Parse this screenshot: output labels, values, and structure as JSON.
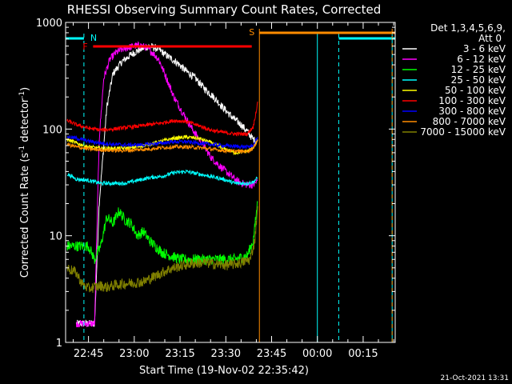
{
  "chart_data": {
    "type": "line",
    "title": "RHESSI Observing Summary Count Rates, Corrected",
    "xlabel": "Start Time (19-Nov-02 22:35:42)",
    "ylabel": "Corrected Count Rate (s⁻¹ detector⁻¹)",
    "ylabel_main": "Corrected Count Rate (s",
    "ylabel_sup1": "-1",
    "ylabel_mid": " detector",
    "ylabel_sup2": "-1",
    "ylabel_end": ")",
    "yscale": "log",
    "ylim": [
      1,
      1000
    ],
    "xlim_minutes": [
      -7.5,
      100.5
    ],
    "x_ticks": [
      {
        "t": 0,
        "label": "22:45"
      },
      {
        "t": 15,
        "label": "23:00"
      },
      {
        "t": 30,
        "label": "23:15"
      },
      {
        "t": 45,
        "label": "23:30"
      },
      {
        "t": 60,
        "label": "23:45"
      },
      {
        "t": 75,
        "label": "00:00"
      },
      {
        "t": 90,
        "label": "00:15"
      }
    ],
    "y_ticks": [
      {
        "v": 1,
        "label": "1"
      },
      {
        "v": 10,
        "label": "10"
      },
      {
        "v": 100,
        "label": "100"
      },
      {
        "v": 1000,
        "label": "1000"
      }
    ],
    "legend_header": [
      "Det 1,3,4,5,6,9,",
      "Att 0"
    ],
    "series": [
      {
        "name": "3 - 6 keV",
        "color": "#ffffff",
        "x": [
          -4,
          2,
          3.5,
          6,
          8,
          11,
          14,
          17,
          20,
          23,
          26,
          29,
          32,
          35,
          38,
          41,
          44,
          47,
          50,
          52,
          54,
          55.5
        ],
        "values": [
          1.5,
          1.5,
          20,
          160,
          330,
          430,
          500,
          560,
          600,
          560,
          480,
          420,
          350,
          300,
          240,
          200,
          160,
          130,
          110,
          95,
          80,
          75
        ]
      },
      {
        "name": "6 - 12 keV",
        "color": "#ff00ff",
        "x": [
          -4,
          2,
          3.5,
          5,
          7,
          9,
          11,
          13,
          15,
          17,
          19,
          21,
          23,
          25,
          28,
          31,
          34,
          37,
          40,
          43,
          46,
          49,
          52,
          54,
          55.5
        ],
        "values": [
          1.5,
          1.5,
          80,
          300,
          450,
          520,
          560,
          580,
          600,
          610,
          580,
          520,
          450,
          330,
          200,
          140,
          100,
          75,
          55,
          45,
          38,
          32,
          30,
          30,
          33
        ]
      },
      {
        "name": "12 - 25 keV",
        "color": "#00ff00",
        "x": [
          -7,
          0,
          2,
          4,
          6,
          8,
          10,
          12,
          14,
          16,
          18,
          20,
          24,
          30,
          36,
          42,
          48,
          52,
          54,
          55.5
        ],
        "values": [
          8,
          8,
          6,
          8,
          15,
          13,
          17,
          14,
          13,
          10,
          11,
          9,
          7,
          6,
          6,
          6,
          6,
          6.5,
          9,
          22
        ]
      },
      {
        "name": "25 - 50 keV",
        "color": "#00ffff",
        "x": [
          -7,
          -4,
          0,
          4,
          8,
          12,
          16,
          20,
          24,
          28,
          32,
          36,
          40,
          44,
          48,
          52,
          54,
          55.5
        ],
        "values": [
          38,
          34,
          33,
          31,
          31,
          31,
          33,
          35,
          36,
          39,
          40,
          38,
          36,
          34,
          31,
          31,
          32,
          35
        ]
      },
      {
        "name": "50 - 100 keV",
        "color": "#ffff00",
        "x": [
          -7,
          -4,
          0,
          4,
          8,
          12,
          16,
          20,
          24,
          28,
          32,
          36,
          40,
          44,
          48,
          52,
          54,
          55.5
        ],
        "values": [
          80,
          74,
          68,
          66,
          66,
          66,
          68,
          72,
          77,
          82,
          84,
          82,
          75,
          66,
          60,
          62,
          67,
          82
        ]
      },
      {
        "name": "100 - 300 keV",
        "color": "#ff0000",
        "x": [
          -7,
          -4,
          0,
          4,
          8,
          12,
          16,
          20,
          24,
          28,
          32,
          36,
          40,
          44,
          48,
          52,
          54,
          55.5
        ],
        "values": [
          120,
          110,
          102,
          98,
          100,
          103,
          106,
          110,
          114,
          120,
          118,
          108,
          98,
          93,
          90,
          90,
          105,
          180
        ]
      },
      {
        "name": "300 - 800 keV",
        "color": "#0000ff",
        "x": [
          -7,
          -4,
          0,
          4,
          8,
          12,
          16,
          20,
          24,
          28,
          32,
          36,
          40,
          44,
          48,
          52,
          54,
          55.5
        ],
        "values": [
          85,
          82,
          77,
          74,
          72,
          71,
          71,
          72,
          74,
          76,
          76,
          74,
          72,
          70,
          69,
          68,
          70,
          85
        ]
      },
      {
        "name": "800 - 7000 keV",
        "color": "#ff8c00",
        "x": [
          -7,
          -4,
          0,
          4,
          8,
          12,
          16,
          20,
          24,
          28,
          32,
          36,
          40,
          44,
          48,
          52,
          54,
          55.5
        ],
        "values": [
          72,
          68,
          65,
          64,
          63,
          63,
          64,
          65,
          67,
          68,
          68,
          67,
          65,
          63,
          62,
          62,
          66,
          80
        ]
      },
      {
        "name": "7000 - 15000 keV",
        "color": "#808000",
        "x": [
          -7,
          -4,
          -2,
          0,
          2,
          4,
          6,
          10,
          14,
          18,
          22,
          26,
          30,
          34,
          38,
          42,
          46,
          50,
          53,
          54.5,
          55.5
        ],
        "values": [
          5,
          4.5,
          3.5,
          3.2,
          3.3,
          3.4,
          3.3,
          3.5,
          3.6,
          3.7,
          4.2,
          4.8,
          5.2,
          5.5,
          5.6,
          5.4,
          5.3,
          5.6,
          6,
          9,
          20
        ]
      }
    ],
    "flags": {
      "night_label": "N",
      "night_color": "#00ffff",
      "night_segments": [
        [
          -7.5,
          -1.5
        ],
        [
          82,
          100.5
        ]
      ],
      "night_boundaries": [
        -1.5,
        75,
        82,
        99.5
      ],
      "flare_label": "F",
      "flare_color": "#ff0000",
      "flare_segment": [
        1.5,
        53.5
      ],
      "saa_label": "S",
      "saa_color": "#ff8c00",
      "saa_segment": [
        56,
        100.5
      ],
      "saa_boundaries": [
        56,
        99.5
      ]
    },
    "grid": false,
    "legend_position": "right"
  },
  "footer": {
    "timestamp": "21-Oct-2021 13:31"
  }
}
